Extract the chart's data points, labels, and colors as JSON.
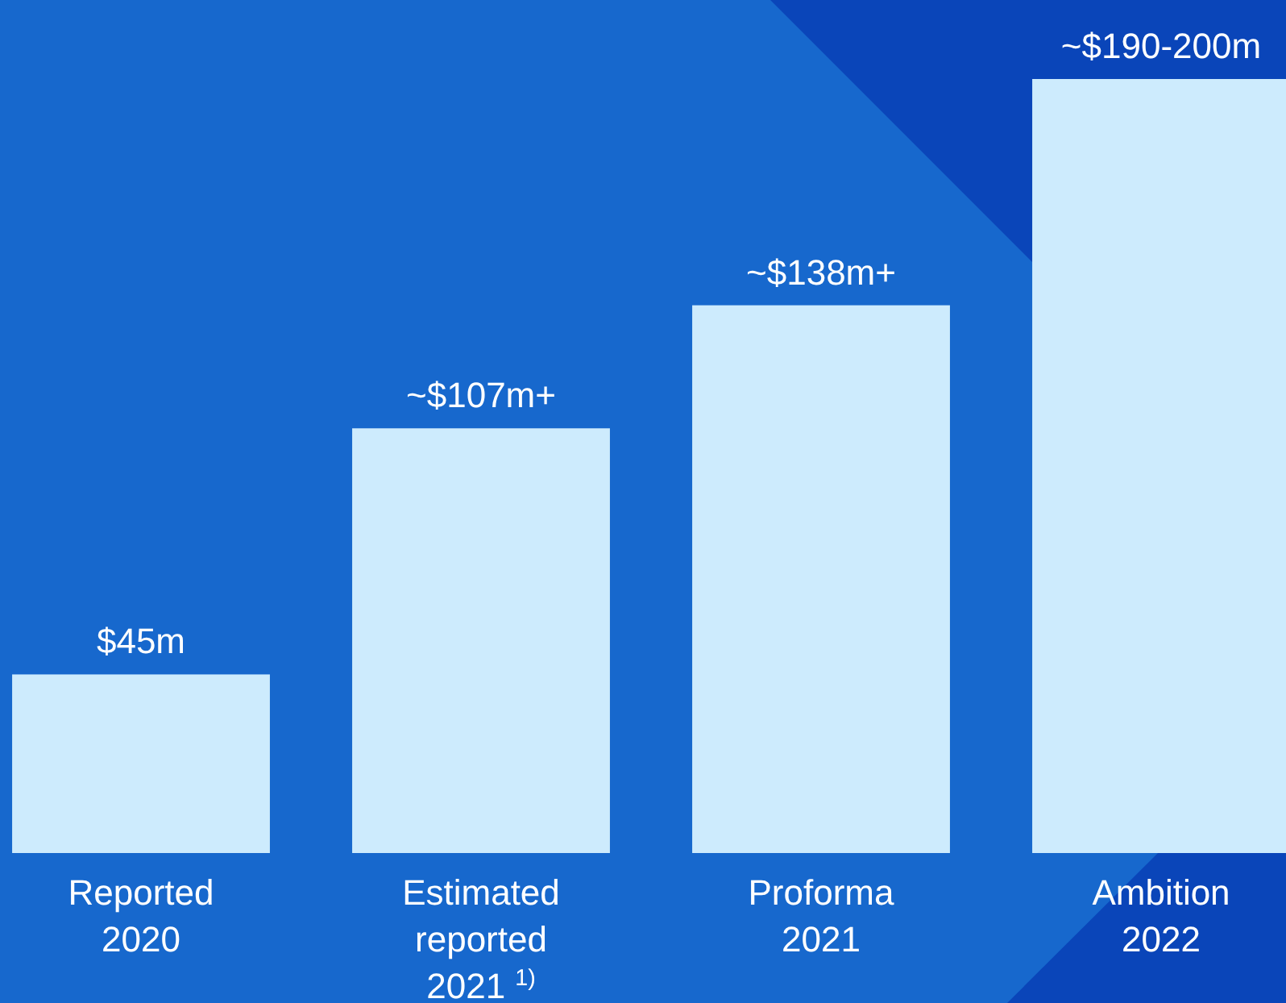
{
  "chart_data": {
    "type": "bar",
    "categories": [
      "Reported\n2020",
      "Estimated\nreported\n2021 $^{1)}$",
      "Proforma\n2021",
      "Ambition\n2022"
    ],
    "values": [
      45,
      107,
      138,
      195
    ],
    "value_labels": [
      "$45m",
      "~$107m+",
      "~$138m+",
      "~$190-200m"
    ],
    "color": "#cdebfd"
  }
}
